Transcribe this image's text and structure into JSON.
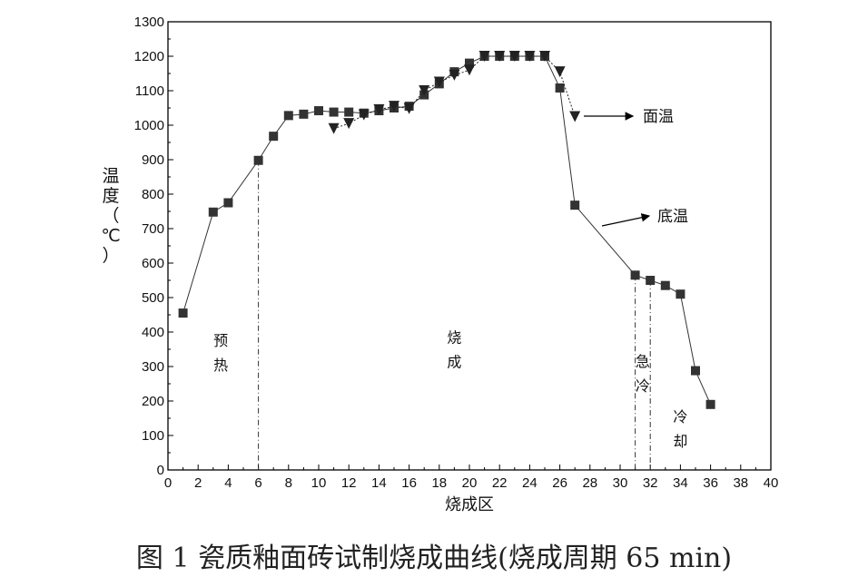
{
  "caption": "图 1 瓷质釉面砖试制烧成曲线(烧成周期 65 min)",
  "chart_data": {
    "type": "line",
    "xlabel": "烧成区",
    "ylabel_chars": [
      "温",
      "度",
      "（",
      "℃",
      "）"
    ],
    "xlim": [
      0,
      40
    ],
    "ylim": [
      0,
      1300
    ],
    "xticks": [
      "0",
      "2",
      "4",
      "6",
      "8",
      "10",
      "12",
      "14",
      "16",
      "18",
      "20",
      "22",
      "24",
      "26",
      "28",
      "30",
      "32",
      "34",
      "36",
      "38",
      "40"
    ],
    "yticks": [
      "0",
      "100",
      "200",
      "300",
      "400",
      "500",
      "600",
      "700",
      "800",
      "900",
      "1000",
      "1100",
      "1200",
      "1300"
    ],
    "grid": false,
    "series": [
      {
        "name": "底温",
        "marker": "square",
        "color": "#333333",
        "x": [
          1,
          3,
          4,
          6,
          7,
          8,
          9,
          10,
          11,
          12,
          13,
          14,
          15,
          16,
          17,
          18,
          19,
          20,
          21,
          22,
          23,
          24,
          25,
          26,
          27,
          31,
          32,
          33,
          34,
          35,
          36
        ],
        "y": [
          455,
          748,
          775,
          898,
          968,
          1028,
          1032,
          1042,
          1038,
          1038,
          1035,
          1042,
          1050,
          1055,
          1088,
          1120,
          1155,
          1180,
          1200,
          1200,
          1200,
          1200,
          1200,
          1108,
          768,
          565,
          550,
          535,
          510,
          288,
          190
        ]
      },
      {
        "name": "面温",
        "marker": "triangle-down",
        "color": "#222222",
        "x": [
          11,
          12,
          13,
          14,
          15,
          16,
          17,
          18,
          19,
          20,
          21,
          22,
          23,
          24,
          25,
          26,
          27
        ],
        "y": [
          990,
          1005,
          1030,
          1045,
          1055,
          1048,
          1100,
          1125,
          1145,
          1160,
          1200,
          1200,
          1200,
          1200,
          1200,
          1155,
          1025
        ]
      }
    ],
    "annotations": [
      {
        "text": "面温",
        "series": "面温"
      },
      {
        "text": "底温",
        "series": "底温"
      }
    ],
    "regions": [
      {
        "chars": [
          "预",
          "热"
        ],
        "x": 3.5,
        "y": 360
      },
      {
        "chars": [
          "烧",
          "成"
        ],
        "x": 19,
        "y": 370
      },
      {
        "chars": [
          "急",
          "冷"
        ],
        "x": 31.5,
        "y": 300
      },
      {
        "chars": [
          "冷",
          "却"
        ],
        "x": 34,
        "y": 140
      }
    ],
    "vlines": [
      6,
      31,
      32
    ]
  }
}
